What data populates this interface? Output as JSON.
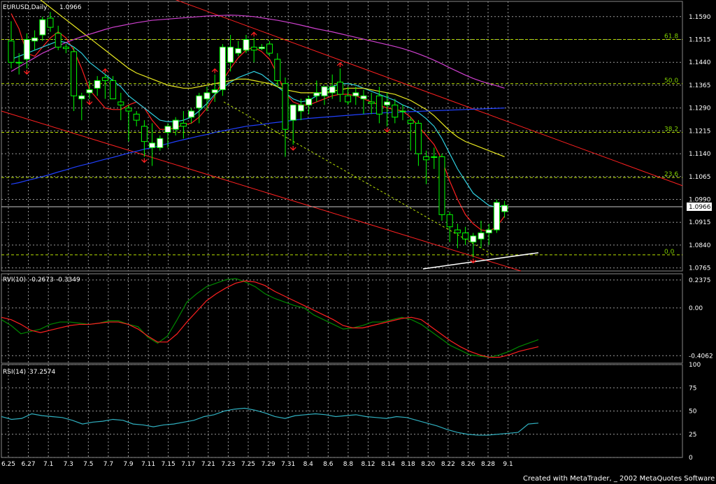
{
  "window": {
    "symbol_label": "EURUSD,Daily",
    "last_price": "1.0966",
    "current_price_tag": "1.0966"
  },
  "footer": {
    "credit": "Created with MetaTrader, _ 2002 MetaQuotes Software Corp."
  },
  "colors": {
    "background": "#000000",
    "grid": "#9a9a9a",
    "bull_candle": "#ffffff",
    "candle_outline": "#00ff00",
    "ma_red": "#ff2020",
    "ma_cyan": "#30d0e0",
    "ma_yellow": "#e8e820",
    "ma_blue": "#2040ff",
    "ma_magenta": "#d040d0",
    "channel": "#ff2020",
    "fib": "#b8e000",
    "rvi_main": "#008800",
    "rvi_signal": "#ff2020",
    "rsi": "#30b0c0"
  },
  "chart_data": [
    {
      "type": "candlestick",
      "panel": "price",
      "ylim": [
        1.0755,
        1.164
      ],
      "y_ticks": [
        "1.1590",
        "1.1515",
        "1.1440",
        "1.1365",
        "1.1290",
        "1.1215",
        "1.1140",
        "1.1065",
        "1.0990",
        "1.0915",
        "1.0840",
        "1.0765"
      ],
      "x_tick_labels": [
        "6.25",
        "6.27",
        "7.1",
        "7.3",
        "7.5",
        "7.7",
        "7.9",
        "7.11",
        "7.15",
        "7.17",
        "7.21",
        "7.23",
        "7.25",
        "7.29",
        "7.31",
        "8.4",
        "8.6",
        "8.8",
        "8.12",
        "8.14",
        "8.18",
        "8.20",
        "8.22",
        "8.26",
        "8.28",
        "9.1"
      ],
      "fib_levels": [
        {
          "label": "61.8",
          "price": 1.1515
        },
        {
          "label": "50.0",
          "price": 1.137
        },
        {
          "label": "38.2",
          "price": 1.121
        },
        {
          "label": "23.6",
          "price": 1.1062
        },
        {
          "label": "0.0",
          "price": 1.0808
        }
      ],
      "candles": [
        {
          "o": 1.151,
          "h": 1.1575,
          "l": 1.142,
          "c": 1.144
        },
        {
          "o": 1.144,
          "h": 1.147,
          "l": 1.14,
          "c": 1.144
        },
        {
          "o": 1.145,
          "h": 1.1535,
          "l": 1.142,
          "c": 1.1515
        },
        {
          "o": 1.151,
          "h": 1.1545,
          "l": 1.148,
          "c": 1.152
        },
        {
          "o": 1.153,
          "h": 1.159,
          "l": 1.151,
          "c": 1.158
        },
        {
          "o": 1.1585,
          "h": 1.1605,
          "l": 1.154,
          "c": 1.1555
        },
        {
          "o": 1.1535,
          "h": 1.156,
          "l": 1.148,
          "c": 1.149
        },
        {
          "o": 1.149,
          "h": 1.15,
          "l": 1.147,
          "c": 1.1485
        },
        {
          "o": 1.1475,
          "h": 1.149,
          "l": 1.128,
          "c": 1.133
        },
        {
          "o": 1.132,
          "h": 1.134,
          "l": 1.125,
          "c": 1.133
        },
        {
          "o": 1.134,
          "h": 1.138,
          "l": 1.132,
          "c": 1.135
        },
        {
          "o": 1.1355,
          "h": 1.1395,
          "l": 1.133,
          "c": 1.138
        },
        {
          "o": 1.139,
          "h": 1.14,
          "l": 1.132,
          "c": 1.138
        },
        {
          "o": 1.138,
          "h": 1.1395,
          "l": 1.132,
          "c": 1.132
        },
        {
          "o": 1.131,
          "h": 1.134,
          "l": 1.125,
          "c": 1.13
        },
        {
          "o": 1.129,
          "h": 1.13,
          "l": 1.118,
          "c": 1.128
        },
        {
          "o": 1.127,
          "h": 1.128,
          "l": 1.123,
          "c": 1.125
        },
        {
          "o": 1.123,
          "h": 1.125,
          "l": 1.113,
          "c": 1.118
        },
        {
          "o": 1.116,
          "h": 1.124,
          "l": 1.11,
          "c": 1.1175
        },
        {
          "o": 1.116,
          "h": 1.12,
          "l": 1.115,
          "c": 1.119
        },
        {
          "o": 1.121,
          "h": 1.124,
          "l": 1.116,
          "c": 1.123
        },
        {
          "o": 1.122,
          "h": 1.126,
          "l": 1.12,
          "c": 1.125
        },
        {
          "o": 1.124,
          "h": 1.128,
          "l": 1.119,
          "c": 1.123
        },
        {
          "o": 1.126,
          "h": 1.129,
          "l": 1.124,
          "c": 1.128
        },
        {
          "o": 1.129,
          "h": 1.134,
          "l": 1.124,
          "c": 1.133
        },
        {
          "o": 1.132,
          "h": 1.136,
          "l": 1.128,
          "c": 1.134
        },
        {
          "o": 1.134,
          "h": 1.14,
          "l": 1.131,
          "c": 1.135
        },
        {
          "o": 1.135,
          "h": 1.15,
          "l": 1.133,
          "c": 1.149
        },
        {
          "o": 1.144,
          "h": 1.153,
          "l": 1.141,
          "c": 1.149
        },
        {
          "o": 1.147,
          "h": 1.151,
          "l": 1.146,
          "c": 1.1485
        },
        {
          "o": 1.148,
          "h": 1.153,
          "l": 1.147,
          "c": 1.1515
        },
        {
          "o": 1.149,
          "h": 1.152,
          "l": 1.144,
          "c": 1.148
        },
        {
          "o": 1.1485,
          "h": 1.15,
          "l": 1.148,
          "c": 1.149
        },
        {
          "o": 1.15,
          "h": 1.151,
          "l": 1.146,
          "c": 1.147
        },
        {
          "o": 1.145,
          "h": 1.147,
          "l": 1.136,
          "c": 1.138
        },
        {
          "o": 1.137,
          "h": 1.139,
          "l": 1.113,
          "c": 1.122
        },
        {
          "o": 1.125,
          "h": 1.13,
          "l": 1.117,
          "c": 1.13
        },
        {
          "o": 1.128,
          "h": 1.132,
          "l": 1.125,
          "c": 1.13
        },
        {
          "o": 1.13,
          "h": 1.133,
          "l": 1.127,
          "c": 1.132
        },
        {
          "o": 1.133,
          "h": 1.138,
          "l": 1.131,
          "c": 1.134
        },
        {
          "o": 1.133,
          "h": 1.136,
          "l": 1.13,
          "c": 1.136
        },
        {
          "o": 1.134,
          "h": 1.14,
          "l": 1.132,
          "c": 1.136
        },
        {
          "o": 1.1375,
          "h": 1.142,
          "l": 1.131,
          "c": 1.1335
        },
        {
          "o": 1.133,
          "h": 1.136,
          "l": 1.13,
          "c": 1.131
        },
        {
          "o": 1.133,
          "h": 1.136,
          "l": 1.13,
          "c": 1.134
        },
        {
          "o": 1.132,
          "h": 1.135,
          "l": 1.127,
          "c": 1.133
        },
        {
          "o": 1.131,
          "h": 1.134,
          "l": 1.127,
          "c": 1.1305
        },
        {
          "o": 1.133,
          "h": 1.136,
          "l": 1.124,
          "c": 1.127
        },
        {
          "o": 1.13,
          "h": 1.134,
          "l": 1.123,
          "c": 1.131
        },
        {
          "o": 1.13,
          "h": 1.132,
          "l": 1.124,
          "c": 1.126
        },
        {
          "o": 1.128,
          "h": 1.13,
          "l": 1.125,
          "c": 1.128
        },
        {
          "o": 1.125,
          "h": 1.126,
          "l": 1.115,
          "c": 1.124
        },
        {
          "o": 1.124,
          "h": 1.125,
          "l": 1.11,
          "c": 1.114
        },
        {
          "o": 1.113,
          "h": 1.115,
          "l": 1.104,
          "c": 1.112
        },
        {
          "o": 1.113,
          "h": 1.116,
          "l": 1.109,
          "c": 1.113
        },
        {
          "o": 1.113,
          "h": 1.114,
          "l": 1.092,
          "c": 1.094
        },
        {
          "o": 1.094,
          "h": 1.095,
          "l": 1.085,
          "c": 1.09
        },
        {
          "o": 1.089,
          "h": 1.091,
          "l": 1.083,
          "c": 1.088
        },
        {
          "o": 1.088,
          "h": 1.09,
          "l": 1.084,
          "c": 1.086
        },
        {
          "o": 1.085,
          "h": 1.088,
          "l": 1.08,
          "c": 1.087
        },
        {
          "o": 1.086,
          "h": 1.092,
          "l": 1.083,
          "c": 1.088
        },
        {
          "o": 1.088,
          "h": 1.091,
          "l": 1.084,
          "c": 1.089
        },
        {
          "o": 1.089,
          "h": 1.099,
          "l": 1.088,
          "c": 1.098
        },
        {
          "o": 1.095,
          "h": 1.0985,
          "l": 1.093,
          "c": 1.097
        }
      ],
      "moving_averages": [
        {
          "color_key": "ma_red",
          "values": [
            1.16,
            1.155,
            1.147,
            1.146,
            1.149,
            1.152,
            1.154,
            1.152,
            1.148,
            1.142,
            1.135,
            1.132,
            1.129,
            1.1285,
            1.1285,
            1.13,
            1.131,
            1.129,
            1.125,
            1.122,
            1.122,
            1.1225,
            1.1235,
            1.124,
            1.126,
            1.129,
            1.133,
            1.138,
            1.142,
            1.1455,
            1.148,
            1.149,
            1.1475,
            1.145,
            1.14,
            1.134,
            1.131,
            1.13,
            1.13,
            1.131,
            1.132,
            1.133,
            1.1335,
            1.1335,
            1.133,
            1.132,
            1.131,
            1.13,
            1.129,
            1.1285,
            1.128,
            1.126,
            1.123,
            1.12,
            1.117,
            1.112,
            1.105,
            1.099,
            1.094,
            1.091,
            1.089,
            1.0885,
            1.09,
            1.0935
          ]
        },
        {
          "color_key": "ma_cyan",
          "values": [
            1.145,
            1.146,
            1.147,
            1.148,
            1.149,
            1.15,
            1.151,
            1.1505,
            1.149,
            1.147,
            1.144,
            1.142,
            1.14,
            1.138,
            1.136,
            1.133,
            1.131,
            1.129,
            1.127,
            1.125,
            1.1245,
            1.1245,
            1.125,
            1.126,
            1.128,
            1.1305,
            1.1335,
            1.1355,
            1.1375,
            1.139,
            1.14,
            1.141,
            1.14,
            1.138,
            1.136,
            1.134,
            1.132,
            1.131,
            1.1315,
            1.133,
            1.1345,
            1.136,
            1.137,
            1.137,
            1.1365,
            1.1355,
            1.1345,
            1.1335,
            1.1325,
            1.1315,
            1.13,
            1.129,
            1.1275,
            1.1255,
            1.123,
            1.119,
            1.114,
            1.109,
            1.105,
            1.101,
            1.099,
            1.097,
            1.0965,
            1.097
          ]
        },
        {
          "color_key": "ma_yellow",
          "values": [
            1.172,
            1.17,
            1.168,
            1.166,
            1.164,
            1.162,
            1.16,
            1.158,
            1.156,
            1.154,
            1.152,
            1.15,
            1.148,
            1.146,
            1.144,
            1.142,
            1.1405,
            1.1395,
            1.1385,
            1.1375,
            1.1365,
            1.136,
            1.1355,
            1.1355,
            1.136,
            1.1365,
            1.137,
            1.1375,
            1.138,
            1.1385,
            1.1385,
            1.138,
            1.1375,
            1.137,
            1.136,
            1.135,
            1.1345,
            1.134,
            1.134,
            1.134,
            1.134,
            1.1345,
            1.135,
            1.1355,
            1.1355,
            1.1355,
            1.135,
            1.1345,
            1.134,
            1.1335,
            1.1325,
            1.1315,
            1.13,
            1.1285,
            1.1265,
            1.124,
            1.1215,
            1.1195,
            1.118,
            1.117,
            1.116,
            1.115,
            1.114,
            1.113
          ]
        },
        {
          "color_key": "ma_blue",
          "values": [
            1.104,
            1.1045,
            1.1052,
            1.1058,
            1.1065,
            1.1072,
            1.108,
            1.1087,
            1.1095,
            1.1102,
            1.1108,
            1.1115,
            1.1122,
            1.1128,
            1.1135,
            1.1142,
            1.1148,
            1.1155,
            1.116,
            1.1167,
            1.1173,
            1.118,
            1.1186,
            1.1192,
            1.1198,
            1.1203,
            1.121,
            1.1215,
            1.122,
            1.1225,
            1.123,
            1.1233,
            1.1236,
            1.124,
            1.1243,
            1.1246,
            1.125,
            1.1253,
            1.1256,
            1.1258,
            1.126,
            1.1262,
            1.1264,
            1.1266,
            1.1268,
            1.127,
            1.1272,
            1.1273,
            1.1275,
            1.1276,
            1.1277,
            1.1278,
            1.1279,
            1.128,
            1.1281,
            1.1282,
            1.1283,
            1.1284,
            1.1285,
            1.1286,
            1.1287,
            1.1288,
            1.1289,
            1.129
          ]
        },
        {
          "color_key": "ma_magenta",
          "values": [
            1.141,
            1.1425,
            1.144,
            1.1455,
            1.147,
            1.1482,
            1.1494,
            1.1505,
            1.1515,
            1.1524,
            1.1532,
            1.154,
            1.1548,
            1.1555,
            1.156,
            1.1565,
            1.157,
            1.1574,
            1.1578,
            1.158,
            1.1582,
            1.1584,
            1.1586,
            1.1588,
            1.159,
            1.1592,
            1.1593,
            1.1594,
            1.1595,
            1.1594,
            1.1592,
            1.159,
            1.1586,
            1.1582,
            1.1578,
            1.1573,
            1.1568,
            1.1562,
            1.1556,
            1.155,
            1.1545,
            1.154,
            1.1534,
            1.1528,
            1.1522,
            1.1516,
            1.151,
            1.1504,
            1.1498,
            1.1492,
            1.1485,
            1.1477,
            1.1468,
            1.1458,
            1.1447,
            1.1435,
            1.1422,
            1.141,
            1.1398,
            1.1387,
            1.1378,
            1.137,
            1.1363,
            1.1355
          ]
        }
      ],
      "fractals": [
        {
          "i": 2,
          "dir": "down"
        },
        {
          "i": 10,
          "dir": "down"
        },
        {
          "i": 12,
          "dir": "up"
        },
        {
          "i": 17,
          "dir": "down"
        },
        {
          "i": 26,
          "dir": "up"
        },
        {
          "i": 31,
          "dir": "up"
        },
        {
          "i": 36,
          "dir": "down"
        },
        {
          "i": 42,
          "dir": "up"
        },
        {
          "i": 48,
          "dir": "down"
        },
        {
          "i": 59,
          "dir": "down"
        }
      ]
    },
    {
      "type": "line",
      "panel": "rvi",
      "title": "RVI(10)",
      "values_label": [
        "-0.2673",
        "-0.3349"
      ],
      "ylim": [
        -0.47,
        0.29
      ],
      "y_ticks": [
        "0.2375",
        "0.00",
        "-0.4062"
      ],
      "series": [
        {
          "color_key": "rvi_main",
          "values": [
            -0.1,
            -0.15,
            -0.22,
            -0.2,
            -0.18,
            -0.14,
            -0.12,
            -0.12,
            -0.13,
            -0.14,
            -0.13,
            -0.11,
            -0.11,
            -0.14,
            -0.16,
            -0.25,
            -0.3,
            -0.24,
            -0.1,
            0.05,
            0.12,
            0.18,
            0.21,
            0.24,
            0.25,
            0.22,
            0.18,
            0.12,
            0.08,
            0.05,
            0.02,
            0.0,
            -0.06,
            -0.1,
            -0.14,
            -0.18,
            -0.17,
            -0.15,
            -0.12,
            -0.12,
            -0.1,
            -0.08,
            -0.1,
            -0.14,
            -0.2,
            -0.26,
            -0.32,
            -0.36,
            -0.4,
            -0.41,
            -0.42,
            -0.4,
            -0.37,
            -0.33,
            -0.3,
            -0.27
          ]
        },
        {
          "color_key": "rvi_signal",
          "values": [
            -0.08,
            -0.1,
            -0.14,
            -0.19,
            -0.21,
            -0.19,
            -0.17,
            -0.15,
            -0.14,
            -0.14,
            -0.13,
            -0.12,
            -0.12,
            -0.14,
            -0.18,
            -0.24,
            -0.29,
            -0.29,
            -0.22,
            -0.12,
            -0.03,
            0.06,
            0.12,
            0.17,
            0.21,
            0.23,
            0.22,
            0.19,
            0.14,
            0.1,
            0.06,
            0.02,
            -0.02,
            -0.06,
            -0.1,
            -0.15,
            -0.17,
            -0.17,
            -0.15,
            -0.13,
            -0.11,
            -0.09,
            -0.08,
            -0.1,
            -0.16,
            -0.22,
            -0.28,
            -0.33,
            -0.37,
            -0.4,
            -0.42,
            -0.42,
            -0.4,
            -0.37,
            -0.35,
            -0.33
          ]
        }
      ]
    },
    {
      "type": "line",
      "panel": "rsi",
      "title": "RSI(14)",
      "values_label": [
        "37.2574"
      ],
      "ylim": [
        0,
        100
      ],
      "y_ticks": [
        "100",
        "75",
        "50",
        "25",
        "0"
      ],
      "series": [
        {
          "color_key": "rsi",
          "values": [
            44,
            41,
            42,
            47,
            45,
            44,
            43,
            40,
            36,
            38,
            39,
            41,
            40,
            36,
            35,
            33,
            35,
            36,
            38,
            40,
            44,
            46,
            50,
            52,
            53,
            51,
            48,
            44,
            42,
            45,
            46,
            47,
            46,
            44,
            45,
            46,
            44,
            43,
            42,
            44,
            43,
            40,
            37,
            34,
            30,
            27,
            25,
            24,
            24,
            25,
            26,
            27,
            36,
            37
          ]
        }
      ]
    }
  ]
}
